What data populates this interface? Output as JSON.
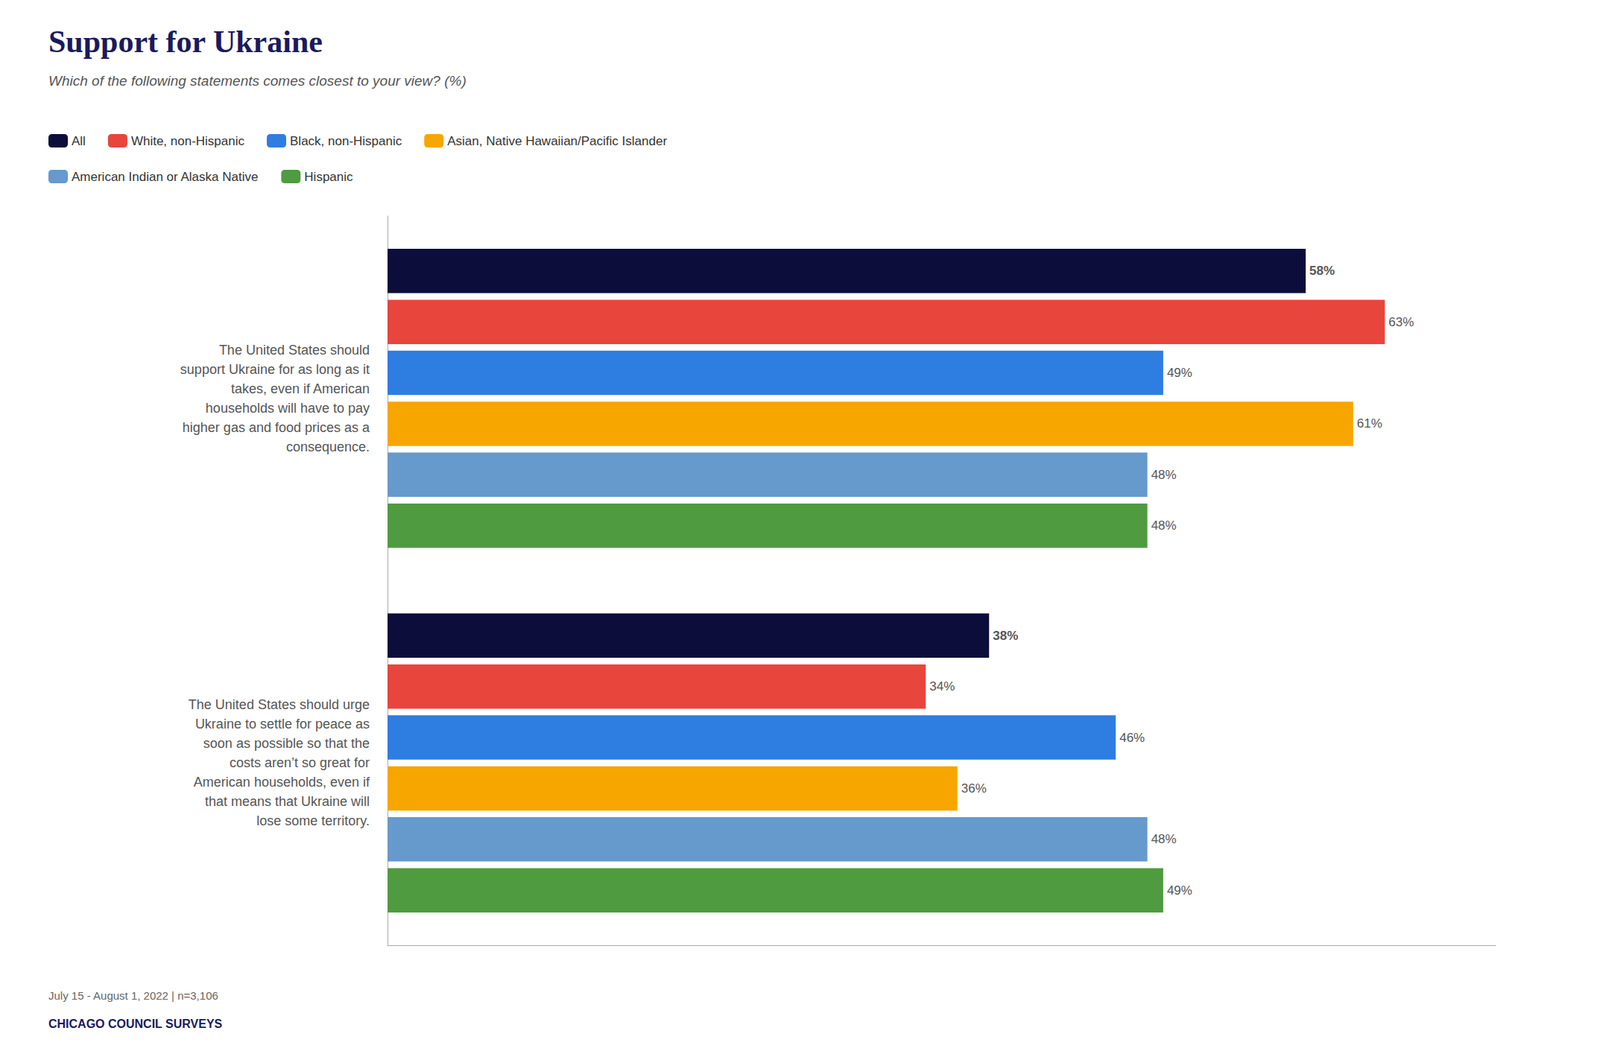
{
  "chart_data": {
    "type": "bar",
    "orientation": "horizontal",
    "title": "Support for Ukraine",
    "subtitle": "Which of the following statements comes closest to your view? (%)",
    "annotations": [
      "July 15 - August 1, 2022 | n=3,106",
      "CHICAGO COUNCIL SURVEYS"
    ],
    "categories": [
      "The United States should\nsupport Ukraine for as long as it\ntakes, even if American\nhouseholds will have to pay\nhigher gas and food prices as a\nconsequence.",
      "The United States should urge\nUkraine to settle for peace as\nsoon as possible so that the\ncosts aren’t so great for\nAmerican households, even if\nthat means that Ukraine will\nlose some territory."
    ],
    "series": [
      {
        "name": "All",
        "color": "#0d0d3b",
        "values": [
          58,
          38
        ],
        "value_labels": [
          "58%",
          "38%"
        ]
      },
      {
        "name": "White, non-Hispanic",
        "color": "#e8453c",
        "values": [
          63,
          34
        ],
        "value_labels": [
          "63%",
          "34%"
        ]
      },
      {
        "name": "Black, non-Hispanic",
        "color": "#2e7de0",
        "values": [
          49,
          46
        ],
        "value_labels": [
          "49%",
          "46%"
        ]
      },
      {
        "name": "Asian, Native Hawaiian/Pacific Islander",
        "color": "#f7a600",
        "values": [
          61,
          36
        ],
        "value_labels": [
          "61%",
          "36%"
        ]
      },
      {
        "name": "American Indian or Alaska Native",
        "color": "#6699cc",
        "values": [
          48,
          48
        ],
        "value_labels": [
          "48%",
          "48%"
        ]
      },
      {
        "name": "Hispanic",
        "color": "#4e9c3f",
        "values": [
          48,
          49
        ],
        "value_labels": [
          "48%",
          "49%"
        ]
      }
    ],
    "xlim": [
      0,
      70
    ],
    "grid": false,
    "tick_labels": "y",
    "data_labels": true,
    "legend": "top"
  }
}
